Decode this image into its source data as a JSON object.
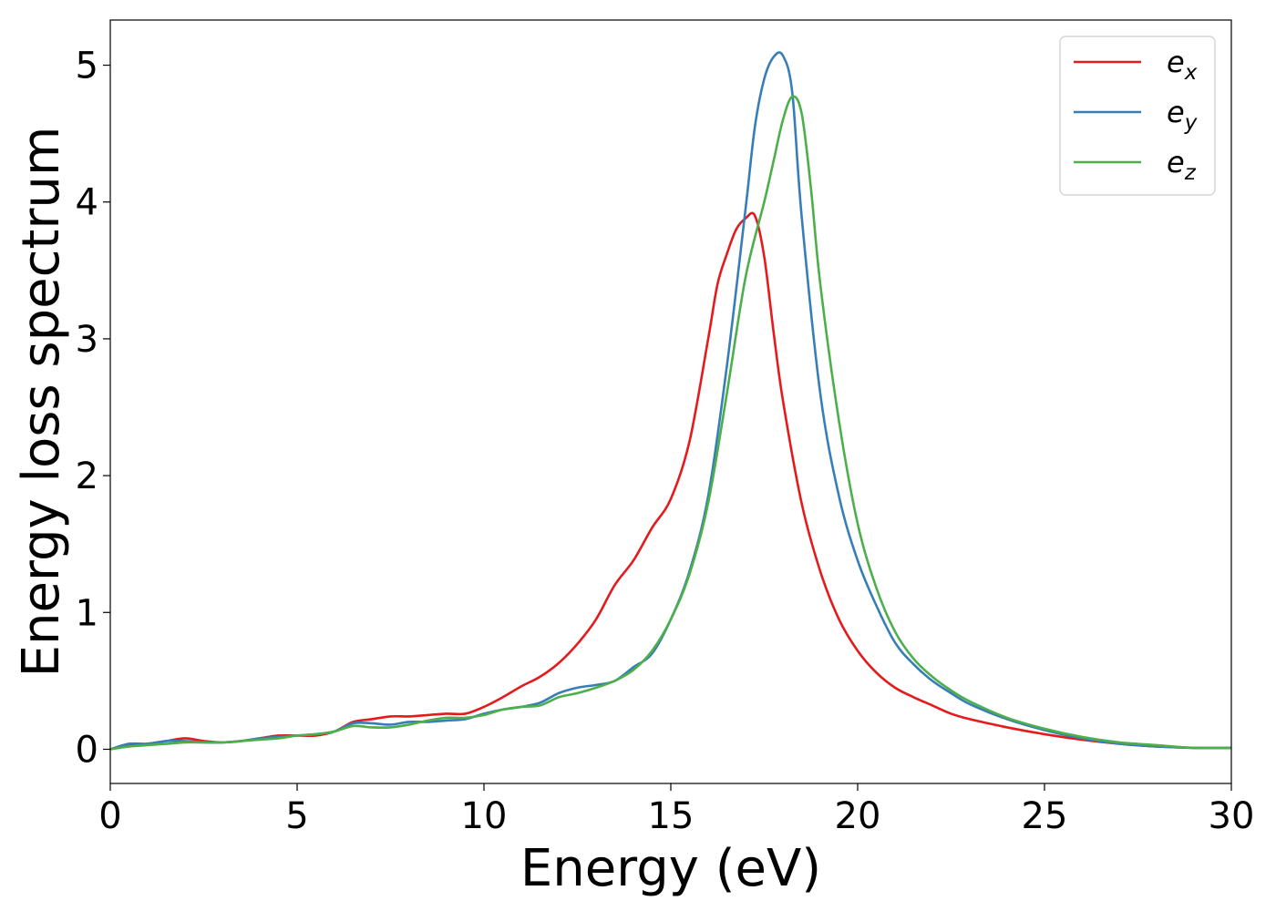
{
  "chart_data": {
    "type": "line",
    "xlabel": "Energy (eV)",
    "ylabel": "Energy loss spectrum",
    "xlim": [
      0,
      30
    ],
    "ylim": [
      -0.25,
      5.33
    ],
    "xticks": [
      0,
      5,
      10,
      15,
      20,
      25,
      30
    ],
    "xtick_labels": [
      "0",
      "5",
      "10",
      "15",
      "20",
      "25",
      "30"
    ],
    "yticks": [
      0,
      1,
      2,
      3,
      4,
      5
    ],
    "ytick_labels": [
      "0",
      "1",
      "2",
      "3",
      "4",
      "5"
    ],
    "grid": false,
    "legend_position": "top-right",
    "series": [
      {
        "name": "e",
        "subscript": "x",
        "color": "#e41a1c",
        "x": [
          0,
          0.5,
          1,
          1.5,
          2,
          2.5,
          3,
          3.5,
          4,
          4.5,
          5,
          5.5,
          6,
          6.5,
          7,
          7.5,
          8,
          8.5,
          9,
          9.5,
          10,
          10.5,
          11,
          11.5,
          12,
          12.5,
          13,
          13.5,
          14,
          14.5,
          15,
          15.5,
          16,
          16.25,
          16.5,
          16.75,
          17,
          17.25,
          17.5,
          17.75,
          18,
          18.5,
          19,
          19.5,
          20,
          20.5,
          21,
          21.5,
          22,
          22.5,
          23,
          24,
          25,
          26,
          27,
          28,
          29,
          30
        ],
        "y": [
          0,
          0.03,
          0.04,
          0.06,
          0.08,
          0.06,
          0.05,
          0.06,
          0.08,
          0.1,
          0.1,
          0.1,
          0.13,
          0.2,
          0.22,
          0.24,
          0.24,
          0.25,
          0.26,
          0.26,
          0.31,
          0.38,
          0.46,
          0.53,
          0.63,
          0.77,
          0.95,
          1.2,
          1.38,
          1.62,
          1.83,
          2.25,
          3.0,
          3.4,
          3.62,
          3.8,
          3.88,
          3.9,
          3.6,
          3.05,
          2.55,
          1.8,
          1.3,
          0.95,
          0.72,
          0.56,
          0.45,
          0.38,
          0.32,
          0.26,
          0.22,
          0.16,
          0.11,
          0.07,
          0.04,
          0.02,
          0.01,
          0.01
        ]
      },
      {
        "name": "e",
        "subscript": "y",
        "color": "#377eb8",
        "x": [
          0,
          0.5,
          1,
          1.5,
          2,
          2.5,
          3,
          3.5,
          4,
          4.5,
          5,
          5.5,
          6,
          6.5,
          7,
          7.5,
          8,
          8.5,
          9,
          9.5,
          10,
          10.5,
          11,
          11.5,
          12,
          12.5,
          13,
          13.5,
          14,
          14.5,
          15,
          15.5,
          16,
          16.5,
          17,
          17.25,
          17.5,
          17.75,
          18,
          18.25,
          18.5,
          19,
          19.5,
          20,
          20.5,
          21,
          21.5,
          22,
          22.5,
          23,
          24,
          25,
          26,
          27,
          28,
          29,
          30
        ],
        "y": [
          0,
          0.04,
          0.04,
          0.06,
          0.06,
          0.05,
          0.05,
          0.06,
          0.08,
          0.09,
          0.1,
          0.11,
          0.13,
          0.19,
          0.19,
          0.18,
          0.2,
          0.2,
          0.21,
          0.22,
          0.26,
          0.29,
          0.31,
          0.34,
          0.41,
          0.45,
          0.47,
          0.5,
          0.6,
          0.7,
          0.95,
          1.3,
          1.85,
          2.8,
          3.95,
          4.55,
          4.9,
          5.06,
          5.07,
          4.8,
          3.9,
          2.6,
          1.85,
          1.38,
          1.05,
          0.78,
          0.62,
          0.5,
          0.41,
          0.33,
          0.22,
          0.14,
          0.08,
          0.04,
          0.02,
          0.01,
          0.01
        ]
      },
      {
        "name": "e",
        "subscript": "z",
        "color": "#4daf4a",
        "x": [
          0,
          0.5,
          1,
          1.5,
          2,
          2.5,
          3,
          3.5,
          4,
          4.5,
          5,
          5.5,
          6,
          6.5,
          7,
          7.5,
          8,
          8.5,
          9,
          9.5,
          10,
          10.5,
          11,
          11.5,
          12,
          12.5,
          13,
          13.5,
          14,
          14.5,
          15,
          15.5,
          16,
          16.5,
          17,
          17.5,
          17.75,
          18,
          18.25,
          18.5,
          18.75,
          19,
          19.5,
          20,
          20.5,
          21,
          21.5,
          22,
          22.5,
          23,
          24,
          25,
          26,
          27,
          28,
          29,
          30
        ],
        "y": [
          0,
          0.02,
          0.03,
          0.04,
          0.05,
          0.05,
          0.05,
          0.06,
          0.07,
          0.08,
          0.1,
          0.11,
          0.13,
          0.17,
          0.16,
          0.16,
          0.18,
          0.21,
          0.23,
          0.23,
          0.25,
          0.29,
          0.31,
          0.32,
          0.38,
          0.41,
          0.45,
          0.5,
          0.58,
          0.72,
          0.95,
          1.28,
          1.8,
          2.6,
          3.45,
          4.0,
          4.3,
          4.6,
          4.77,
          4.65,
          4.1,
          3.4,
          2.4,
          1.65,
          1.18,
          0.86,
          0.66,
          0.53,
          0.43,
          0.35,
          0.23,
          0.15,
          0.09,
          0.05,
          0.03,
          0.01,
          0.01
        ]
      }
    ]
  }
}
